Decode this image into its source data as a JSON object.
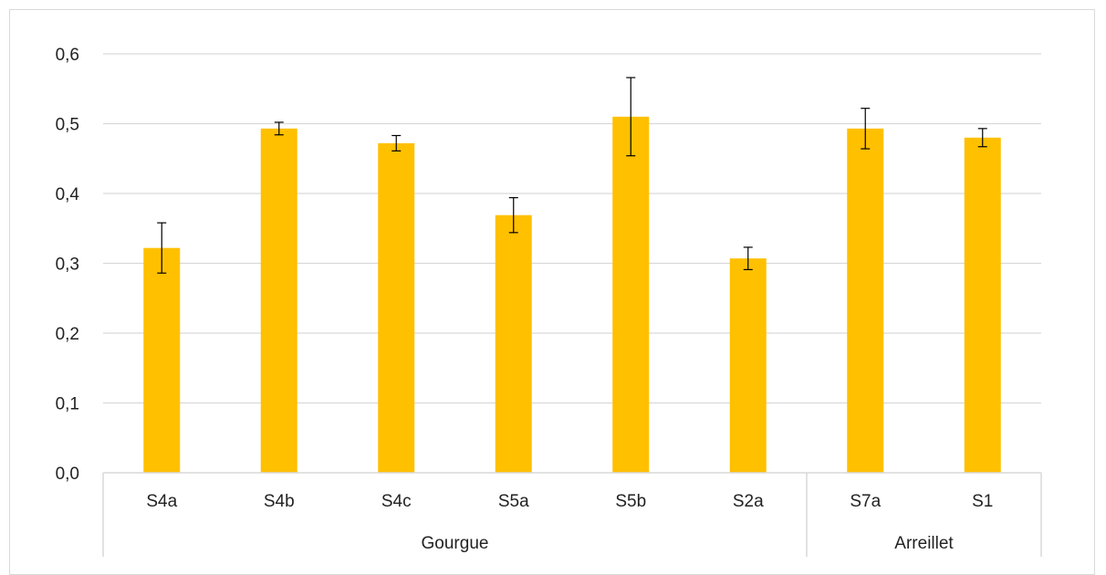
{
  "chart_data": {
    "type": "bar",
    "categories": [
      "S4a",
      "S4b",
      "S4c",
      "S5a",
      "S5b",
      "S2a",
      "S7a",
      "S1"
    ],
    "groups": [
      {
        "label": "Gourgue",
        "categories": [
          "S4a",
          "S4b",
          "S4c",
          "S5a",
          "S5b",
          "S2a"
        ]
      },
      {
        "label": "Arreillet",
        "categories": [
          "S7a",
          "S1"
        ]
      }
    ],
    "values": [
      0.322,
      0.493,
      0.472,
      0.369,
      0.51,
      0.307,
      0.493,
      0.48
    ],
    "error": [
      0.036,
      0.009,
      0.011,
      0.025,
      0.056,
      0.016,
      0.029,
      0.013
    ],
    "ylim": [
      0,
      0.6
    ],
    "yticks": [
      "0,0",
      "0,1",
      "0,2",
      "0,3",
      "0,4",
      "0,5",
      "0,6"
    ],
    "ytick_values": [
      0,
      0.1,
      0.2,
      0.3,
      0.4,
      0.5,
      0.6
    ],
    "title": "",
    "xlabel": "",
    "ylabel": "",
    "grid": true,
    "bar_color": "#FFC000",
    "grid_color": "#d9d9d9"
  }
}
